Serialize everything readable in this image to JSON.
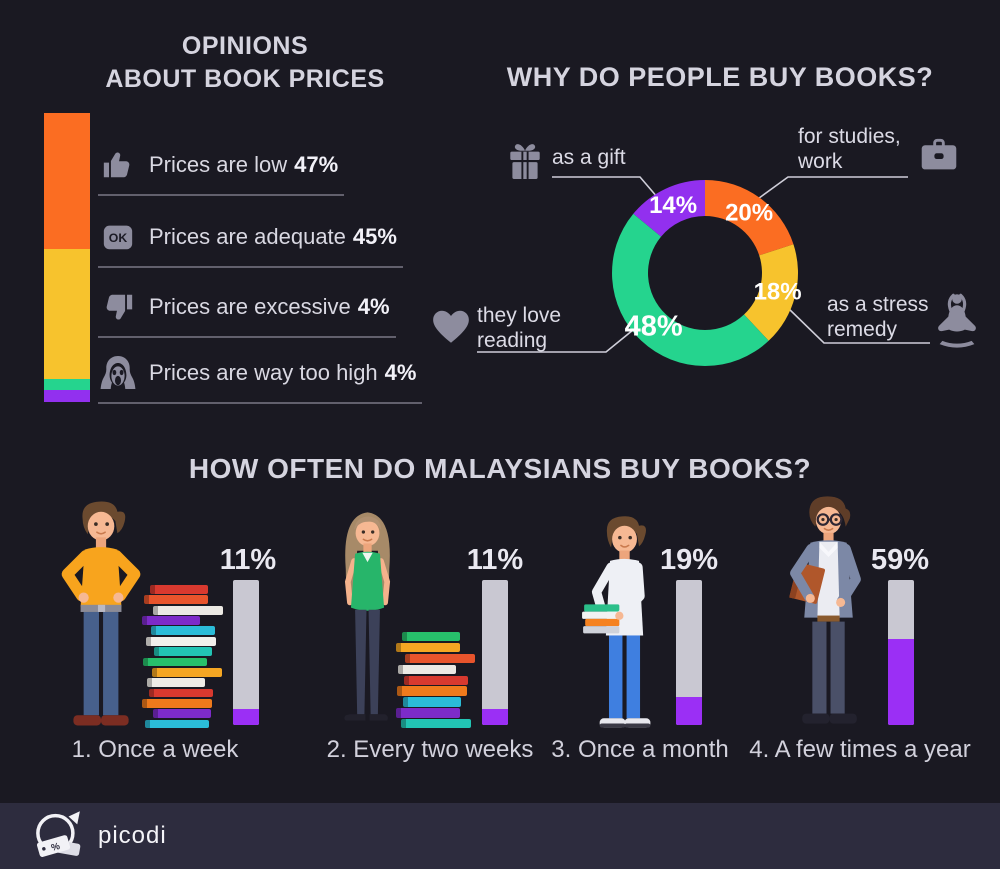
{
  "footer": {
    "brand": "picodi"
  },
  "chart_data": [
    {
      "id": "opinions",
      "type": "bar",
      "subtype": "stacked-vertical-bar",
      "title": "OPINIONS ABOUT BOOK PRICES",
      "title_lines": [
        "OPINIONS",
        "ABOUT BOOK PRICES"
      ],
      "categories": [
        "Prices are low",
        "Prices are adequate",
        "Prices are excessive",
        "Prices are way too high"
      ],
      "values": [
        47,
        45,
        4,
        4
      ],
      "value_labels": [
        "47%",
        "45%",
        "4%",
        "4%"
      ],
      "colors": [
        "#fb6d22",
        "#f7c32d",
        "#25d48e",
        "#9230ef"
      ],
      "icons": [
        "thumbs-up-icon",
        "ok-badge-icon",
        "thumbs-down-icon",
        "scream-icon"
      ],
      "ylim": [
        0,
        100
      ],
      "grid": false
    },
    {
      "id": "reasons",
      "type": "pie",
      "subtype": "donut",
      "title": "WHY DO PEOPLE BUY BOOKS?",
      "start_angle_deg": 0,
      "direction": "clockwise",
      "slices": [
        {
          "label": "for studies,\nwork",
          "pct": 20,
          "pct_label": "20%",
          "color": "#fb6d22",
          "icon": "briefcase-icon"
        },
        {
          "label": "as a stress\nremedy",
          "pct": 18,
          "pct_label": "18%",
          "color": "#f7c32d",
          "icon": "yoga-icon"
        },
        {
          "label": "they love\nreading",
          "pct": 48,
          "pct_label": "48%",
          "color": "#25d48e",
          "icon": "heart-icon"
        },
        {
          "label": "as a gift",
          "pct": 14,
          "pct_label": "14%",
          "color": "#9230ef",
          "icon": "gift-icon"
        }
      ]
    },
    {
      "id": "frequency",
      "type": "bar",
      "title": "HOW OFTEN DO MALAYSIANS BUY BOOKS?",
      "categories": [
        "1. Once a week",
        "2. Every two weeks",
        "3. Once a month",
        "4. A few times a year"
      ],
      "values": [
        11,
        11,
        19,
        59
      ],
      "value_labels": [
        "11%",
        "11%",
        "19%",
        "59%"
      ],
      "bar_fill_color": "#9b2ff5",
      "bar_track_color": "#c9c8d2",
      "ylim": [
        0,
        100
      ],
      "grid": false
    }
  ]
}
